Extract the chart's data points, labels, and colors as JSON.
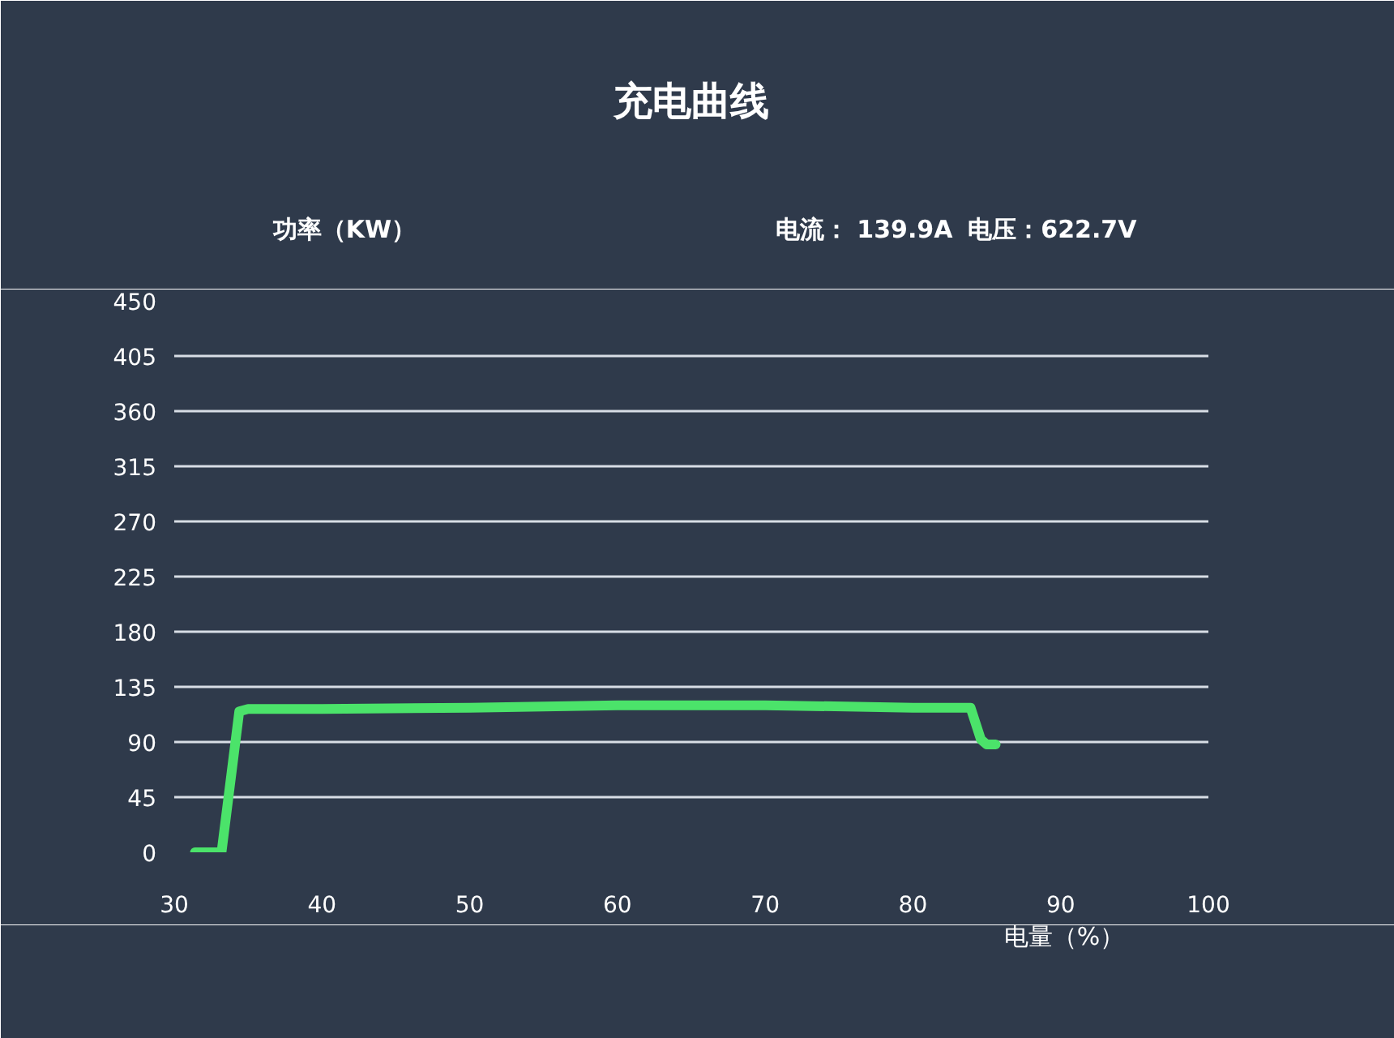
{
  "chart_data": {
    "type": "line",
    "title": "充电曲线",
    "xlabel": "电量（%）",
    "ylabel": "功率（KW）",
    "annotations": [
      "电流：  139.9A",
      "电压：622.7V"
    ],
    "x": [
      31.4,
      33.2,
      34.4,
      35,
      40,
      50,
      60,
      70,
      80,
      83.9,
      84.6,
      85,
      85.6
    ],
    "series": [
      {
        "color": "#4be36a",
        "values": [
          0,
          0,
          115,
          117,
          117,
          118,
          120,
          120,
          118,
          118,
          92,
          88,
          88
        ]
      }
    ],
    "xlim": [
      30,
      100
    ],
    "xticks": [
      30,
      40,
      50,
      60,
      70,
      80,
      90,
      100
    ],
    "ylim": [
      0,
      450
    ],
    "yticks": [
      0,
      45,
      90,
      135,
      180,
      225,
      270,
      315,
      360,
      405,
      450
    ],
    "grid": "y",
    "marker": "none",
    "line_style": "solid"
  }
}
